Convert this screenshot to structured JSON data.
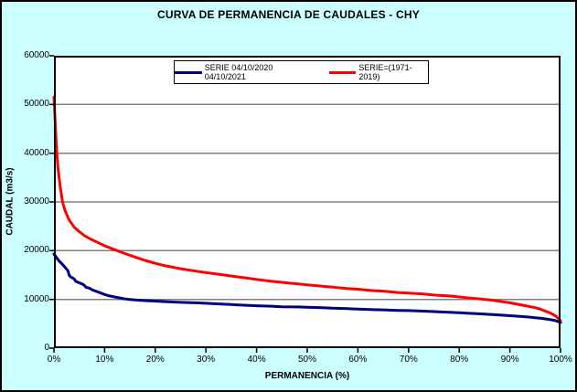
{
  "chart_data": {
    "type": "line",
    "title": "CURVA DE PERMANENCIA DE CAUDALES - CHY",
    "xlabel": "PERMANENCIA (%)",
    "ylabel": "CAUDAL (m3/s)",
    "xlim": [
      0,
      100
    ],
    "ylim": [
      0,
      60000
    ],
    "xticks": [
      "0%",
      "10%",
      "20%",
      "30%",
      "40%",
      "50%",
      "60%",
      "70%",
      "80%",
      "90%",
      "100%"
    ],
    "yticks": [
      0,
      10000,
      20000,
      30000,
      40000,
      50000,
      60000
    ],
    "grid": "horizontal-gray",
    "legend_position": "top-center-inside",
    "colors": {
      "background": "#CCFFFF",
      "plot_background": "#FFFFFF",
      "grid": "#808080",
      "axis": "#000000",
      "title_text": "#000000"
    },
    "series": [
      {
        "name": "SERIE 04/10/2020 04/10/2021",
        "color": "#000080",
        "points": [
          [
            0,
            19300
          ],
          [
            0.5,
            18600
          ],
          [
            1,
            17900
          ],
          [
            1.5,
            17400
          ],
          [
            2,
            16800
          ],
          [
            2.5,
            16200
          ],
          [
            2.8,
            15800
          ],
          [
            3,
            15000
          ],
          [
            3.3,
            14600
          ],
          [
            4,
            14200
          ],
          [
            4.3,
            13700
          ],
          [
            5,
            13400
          ],
          [
            5.5,
            13200
          ],
          [
            6,
            12900
          ],
          [
            6.3,
            12500
          ],
          [
            7,
            12300
          ],
          [
            7.5,
            12000
          ],
          [
            8,
            11800
          ],
          [
            9,
            11400
          ],
          [
            10,
            11000
          ],
          [
            11,
            10700
          ],
          [
            12,
            10500
          ],
          [
            13,
            10300
          ],
          [
            14,
            10100
          ],
          [
            15,
            10000
          ],
          [
            16,
            9900
          ],
          [
            18,
            9750
          ],
          [
            20,
            9650
          ],
          [
            22,
            9550
          ],
          [
            25,
            9400
          ],
          [
            28,
            9300
          ],
          [
            30,
            9200
          ],
          [
            33,
            9050
          ],
          [
            35,
            8950
          ],
          [
            38,
            8800
          ],
          [
            40,
            8700
          ],
          [
            43,
            8600
          ],
          [
            45,
            8500
          ],
          [
            48,
            8450
          ],
          [
            50,
            8400
          ],
          [
            53,
            8300
          ],
          [
            55,
            8200
          ],
          [
            58,
            8100
          ],
          [
            60,
            8000
          ],
          [
            63,
            7900
          ],
          [
            65,
            7850
          ],
          [
            68,
            7750
          ],
          [
            70,
            7700
          ],
          [
            73,
            7600
          ],
          [
            75,
            7500
          ],
          [
            78,
            7350
          ],
          [
            80,
            7250
          ],
          [
            83,
            7100
          ],
          [
            85,
            7000
          ],
          [
            88,
            6800
          ],
          [
            90,
            6650
          ],
          [
            92,
            6500
          ],
          [
            94,
            6350
          ],
          [
            95,
            6250
          ],
          [
            96,
            6150
          ],
          [
            97,
            6000
          ],
          [
            98,
            5850
          ],
          [
            99,
            5650
          ],
          [
            100,
            5250
          ]
        ]
      },
      {
        "name": "SERIE=(1971-2019)",
        "color": "#FF0000",
        "points": [
          [
            0,
            51500
          ],
          [
            0.2,
            47500
          ],
          [
            0.5,
            41000
          ],
          [
            0.8,
            37000
          ],
          [
            1.2,
            33500
          ],
          [
            1.7,
            30000
          ],
          [
            2.2,
            28200
          ],
          [
            3,
            26300
          ],
          [
            4,
            24800
          ],
          [
            5,
            23900
          ],
          [
            6,
            23100
          ],
          [
            7,
            22500
          ],
          [
            8,
            22000
          ],
          [
            9,
            21500
          ],
          [
            10,
            21000
          ],
          [
            12,
            20200
          ],
          [
            14,
            19400
          ],
          [
            16,
            18700
          ],
          [
            18,
            18000
          ],
          [
            20,
            17400
          ],
          [
            22,
            16900
          ],
          [
            25,
            16300
          ],
          [
            28,
            15800
          ],
          [
            30,
            15500
          ],
          [
            33,
            15100
          ],
          [
            35,
            14800
          ],
          [
            38,
            14400
          ],
          [
            40,
            14100
          ],
          [
            43,
            13700
          ],
          [
            45,
            13500
          ],
          [
            48,
            13200
          ],
          [
            50,
            13000
          ],
          [
            53,
            12700
          ],
          [
            55,
            12500
          ],
          [
            58,
            12200
          ],
          [
            60,
            12100
          ],
          [
            63,
            11800
          ],
          [
            65,
            11700
          ],
          [
            68,
            11400
          ],
          [
            70,
            11300
          ],
          [
            73,
            11100
          ],
          [
            75,
            10900
          ],
          [
            78,
            10700
          ],
          [
            80,
            10500
          ],
          [
            82,
            10300
          ],
          [
            84,
            10100
          ],
          [
            86,
            9900
          ],
          [
            88,
            9600
          ],
          [
            90,
            9300
          ],
          [
            92,
            8900
          ],
          [
            94,
            8500
          ],
          [
            95,
            8300
          ],
          [
            96,
            8000
          ],
          [
            97,
            7600
          ],
          [
            98,
            7200
          ],
          [
            99,
            6600
          ],
          [
            99.5,
            6200
          ],
          [
            100,
            5600
          ]
        ]
      }
    ]
  }
}
